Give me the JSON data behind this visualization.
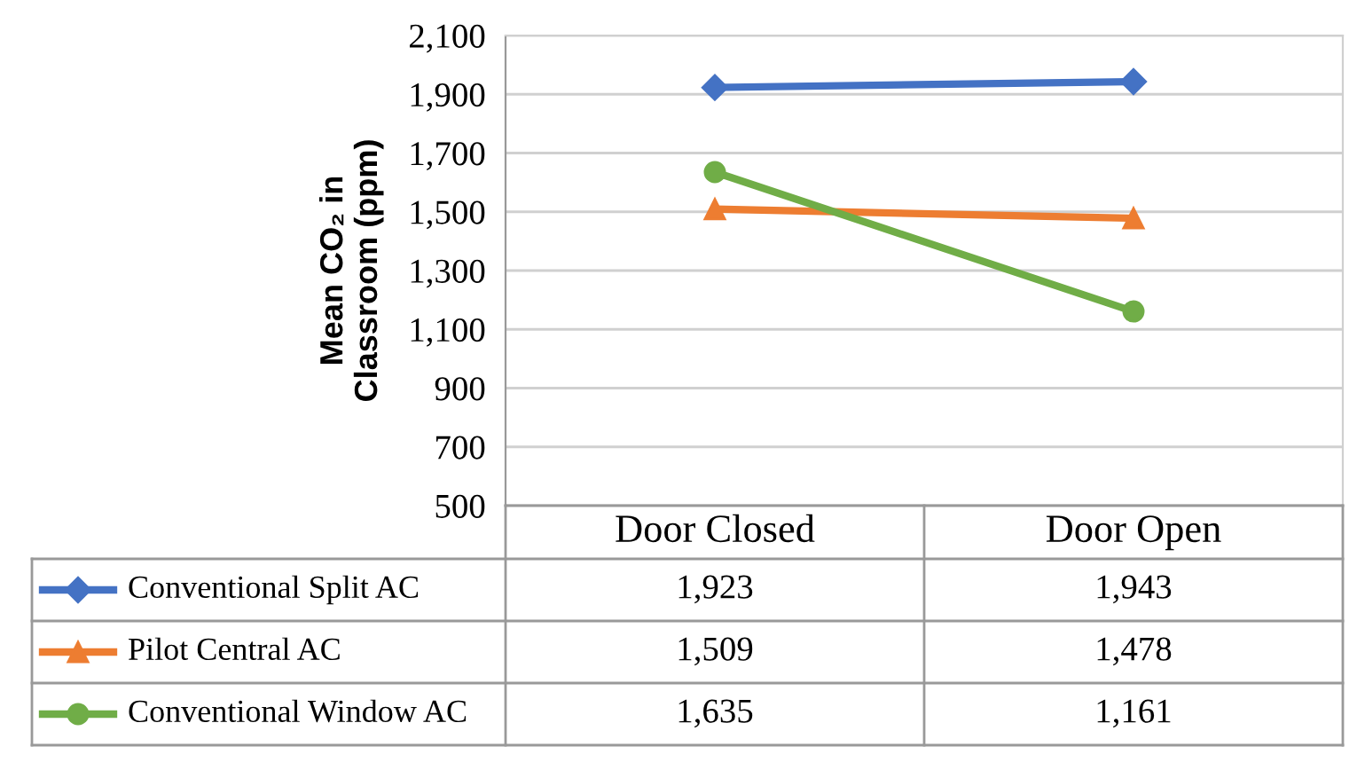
{
  "chart_data": {
    "type": "line",
    "ylabel": "Mean CO₂ in\nClassroom (ppm)",
    "categories": [
      "Door Closed",
      "Door Open"
    ],
    "series": [
      {
        "name": "Conventional Split AC",
        "color": "#4472c4",
        "marker": "diamond",
        "values": [
          1923,
          1943
        ]
      },
      {
        "name": "Pilot Central AC",
        "color": "#ed7d31",
        "marker": "triangle",
        "values": [
          1509,
          1478
        ]
      },
      {
        "name": "Conventional Window AC",
        "color": "#70ad47",
        "marker": "circle",
        "values": [
          1635,
          1161
        ]
      }
    ],
    "value_labels": [
      [
        "1,923",
        "1,943"
      ],
      [
        "1,509",
        "1,478"
      ],
      [
        "1,635",
        "1,161"
      ]
    ],
    "ylim": [
      500,
      2100
    ],
    "yticks": [
      {
        "value": 500,
        "label": "500"
      },
      {
        "value": 700,
        "label": "700"
      },
      {
        "value": 900,
        "label": "900"
      },
      {
        "value": 1100,
        "label": "1,100"
      },
      {
        "value": 1300,
        "label": "1,300"
      },
      {
        "value": 1500,
        "label": "1,500"
      },
      {
        "value": 1700,
        "label": "1,700"
      },
      {
        "value": 1900,
        "label": "1,900"
      },
      {
        "value": 2100,
        "label": "2,100"
      }
    ],
    "grid": "y",
    "legend": "bottom",
    "line_style": "solid"
  }
}
